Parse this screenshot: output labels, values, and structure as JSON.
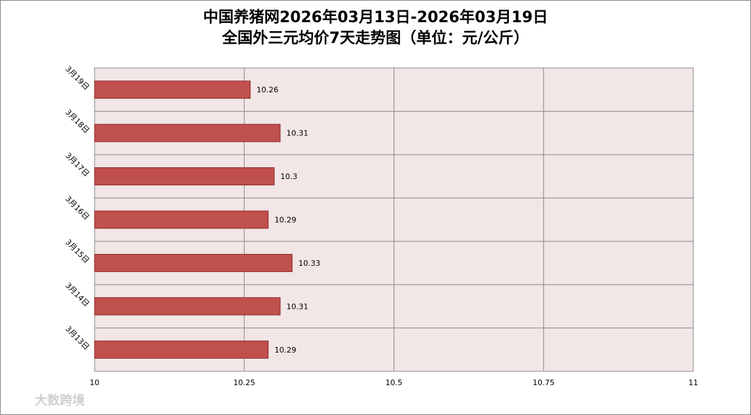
{
  "chart_data": {
    "type": "bar",
    "orientation": "horizontal",
    "title": "中国养猪网2026年03月13日-2026年03月19日",
    "subtitle": "全国外三元均价7天走势图（单位：元/公斤）",
    "categories": [
      "3月19日",
      "3月18日",
      "3月17日",
      "3月16日",
      "3月15日",
      "3月14日",
      "3月13日"
    ],
    "values": [
      10.26,
      10.31,
      10.3,
      10.29,
      10.33,
      10.31,
      10.29
    ],
    "color": "#c0504d",
    "xlim": [
      10,
      11
    ],
    "xticks": [
      10,
      10.25,
      10.5,
      10.75,
      11
    ],
    "grid": true
  },
  "watermark": "大数跨境"
}
